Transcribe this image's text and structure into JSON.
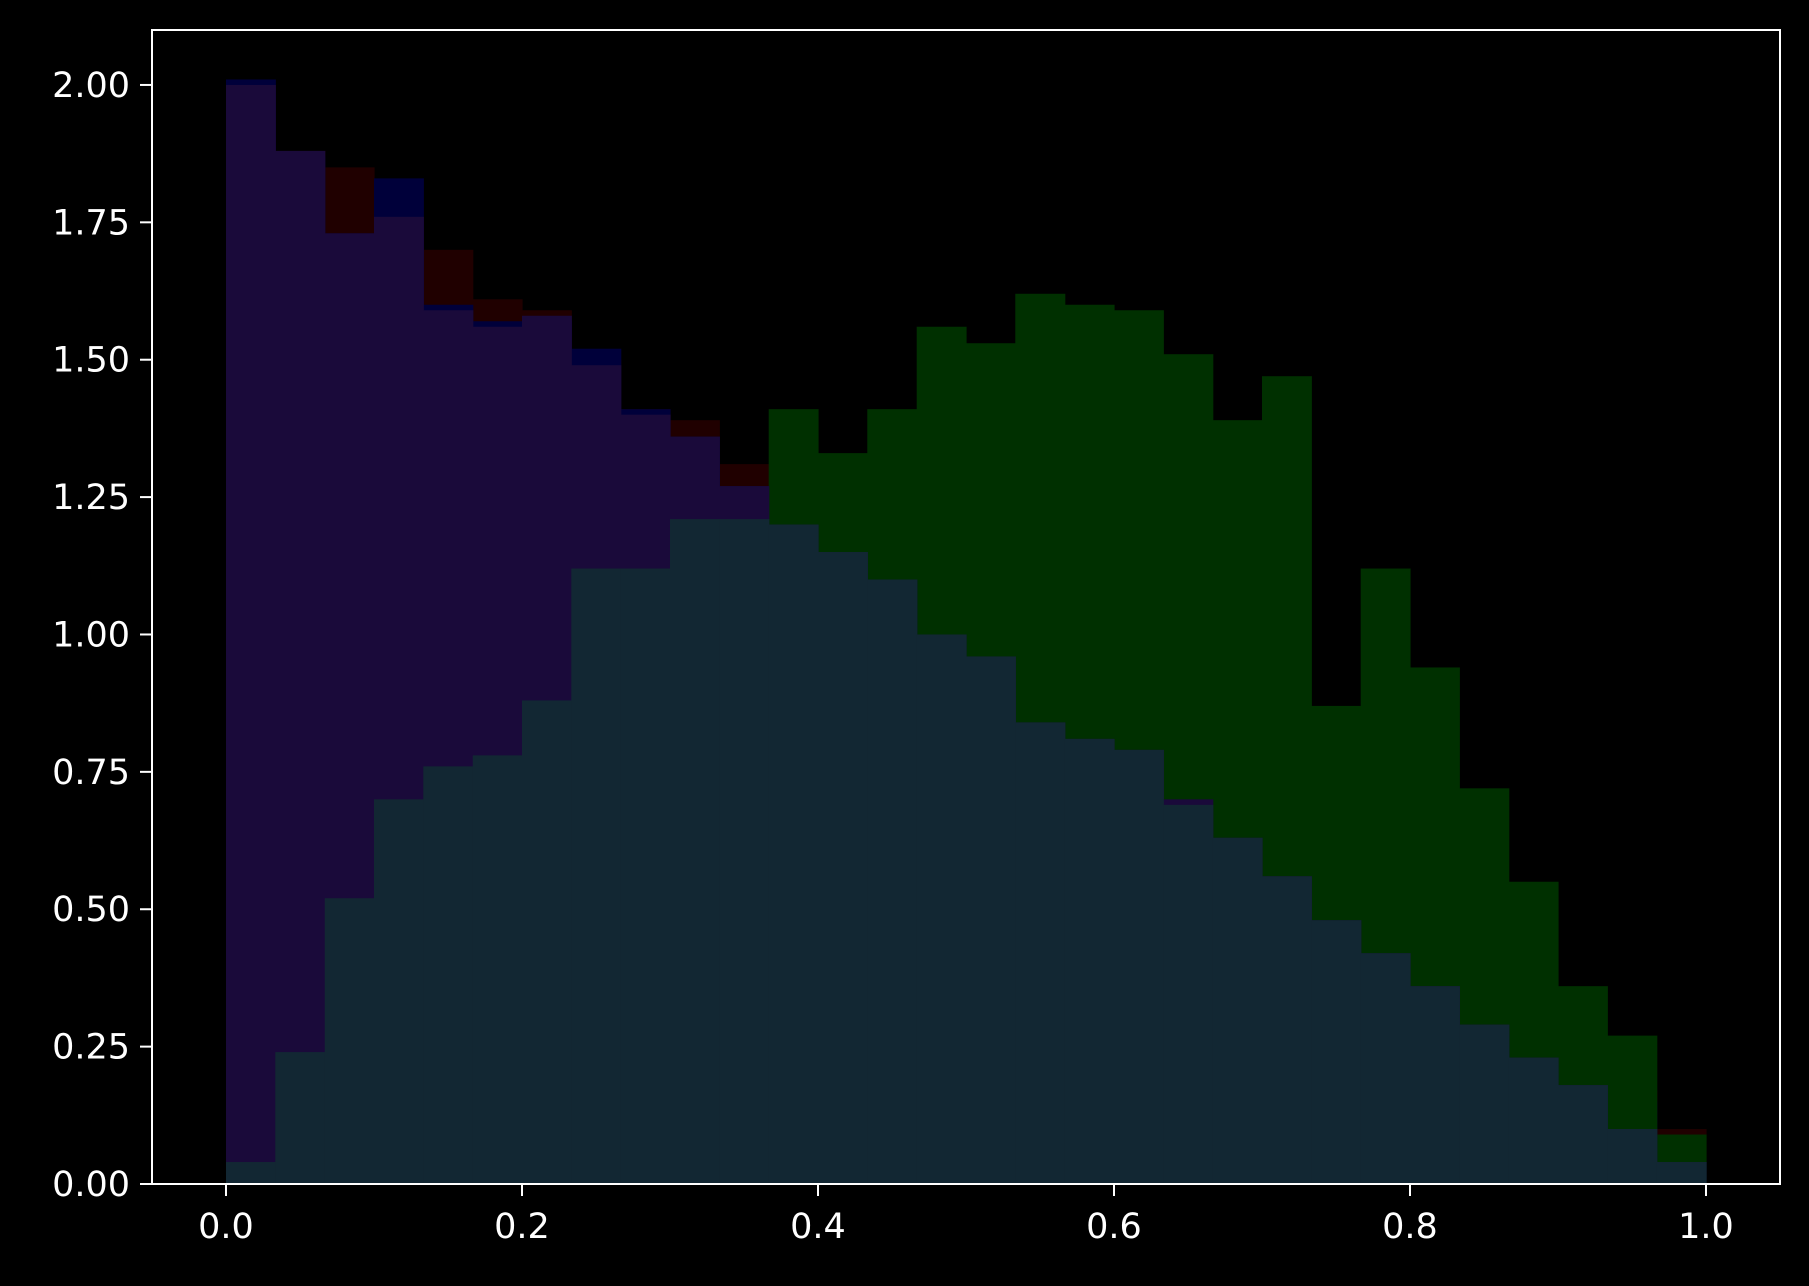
{
  "chart_data": {
    "type": "bar",
    "subtype": "overlapping-step-histogram",
    "title": "",
    "xlabel": "",
    "ylabel": "",
    "xlim": [
      -0.05,
      1.05
    ],
    "ylim": [
      0,
      2.1
    ],
    "xticks": [
      "0.0",
      "0.2",
      "0.4",
      "0.6",
      "0.8",
      "1.0"
    ],
    "yticks": [
      "0.00",
      "0.25",
      "0.50",
      "0.75",
      "1.00",
      "1.25",
      "1.50",
      "1.75",
      "2.00"
    ],
    "grid": false,
    "legend": "none",
    "background": "#000000",
    "axis_color": "#ffffff",
    "bin_edges": [
      0.0,
      0.0333,
      0.0667,
      0.1,
      0.1333,
      0.1667,
      0.2,
      0.2333,
      0.2667,
      0.3,
      0.3333,
      0.3667,
      0.4,
      0.4333,
      0.4667,
      0.5,
      0.5333,
      0.5667,
      0.6,
      0.6333,
      0.6667,
      0.7,
      0.7333,
      0.7667,
      0.8,
      0.8333,
      0.8667,
      0.9,
      0.9333,
      0.9667,
      1.0
    ],
    "series": [
      {
        "color": "#200000",
        "values": [
          2.0,
          1.88,
          1.85,
          1.76,
          1.7,
          1.61,
          1.59,
          1.5,
          1.41,
          1.39,
          1.31,
          1.2,
          1.16,
          1.11,
          1.02,
          0.99,
          0.9,
          0.83,
          0.78,
          0.72,
          0.66,
          0.62,
          0.54,
          0.51,
          0.44,
          0.36,
          0.3,
          0.24,
          0.17,
          0.1
        ]
      },
      {
        "color": "#00003a",
        "values": [
          2.01,
          1.87,
          1.73,
          1.83,
          1.6,
          1.57,
          1.57,
          1.52,
          1.41,
          1.36,
          1.27,
          1.2,
          1.15,
          1.1,
          1.01,
          1.05,
          0.86,
          0.83,
          0.8,
          0.72,
          0.67,
          0.68,
          0.51,
          0.42,
          0.39,
          0.29,
          0.24,
          0.19,
          0.15,
          0.04
        ]
      },
      {
        "color": "#003000",
        "values": [
          0.04,
          0.24,
          0.52,
          0.7,
          0.76,
          0.78,
          0.88,
          1.12,
          1.12,
          1.21,
          1.21,
          1.41,
          1.33,
          1.41,
          1.56,
          1.53,
          1.62,
          1.6,
          1.59,
          1.51,
          1.39,
          1.47,
          0.87,
          1.12,
          0.94,
          0.72,
          0.55,
          0.36,
          0.27,
          0.09
        ]
      },
      {
        "color": "#1a0a3a",
        "values": [
          2.0,
          1.88,
          1.73,
          1.76,
          1.59,
          1.56,
          1.58,
          1.49,
          1.4,
          1.36,
          1.27,
          1.2,
          1.15,
          1.1,
          1.0,
          0.96,
          0.84,
          0.81,
          0.79,
          0.7,
          0.63,
          0.56,
          0.48,
          0.42,
          0.36,
          0.29,
          0.23,
          0.18,
          0.1,
          0.04
        ]
      },
      {
        "color": "#122733",
        "values": [
          0.04,
          0.24,
          0.52,
          0.7,
          0.76,
          0.78,
          0.88,
          1.12,
          1.12,
          1.21,
          1.21,
          1.2,
          1.15,
          1.1,
          1.0,
          0.96,
          0.84,
          0.81,
          0.79,
          0.69,
          0.63,
          0.56,
          0.48,
          0.42,
          0.36,
          0.29,
          0.23,
          0.18,
          0.1,
          0.04
        ]
      }
    ]
  }
}
